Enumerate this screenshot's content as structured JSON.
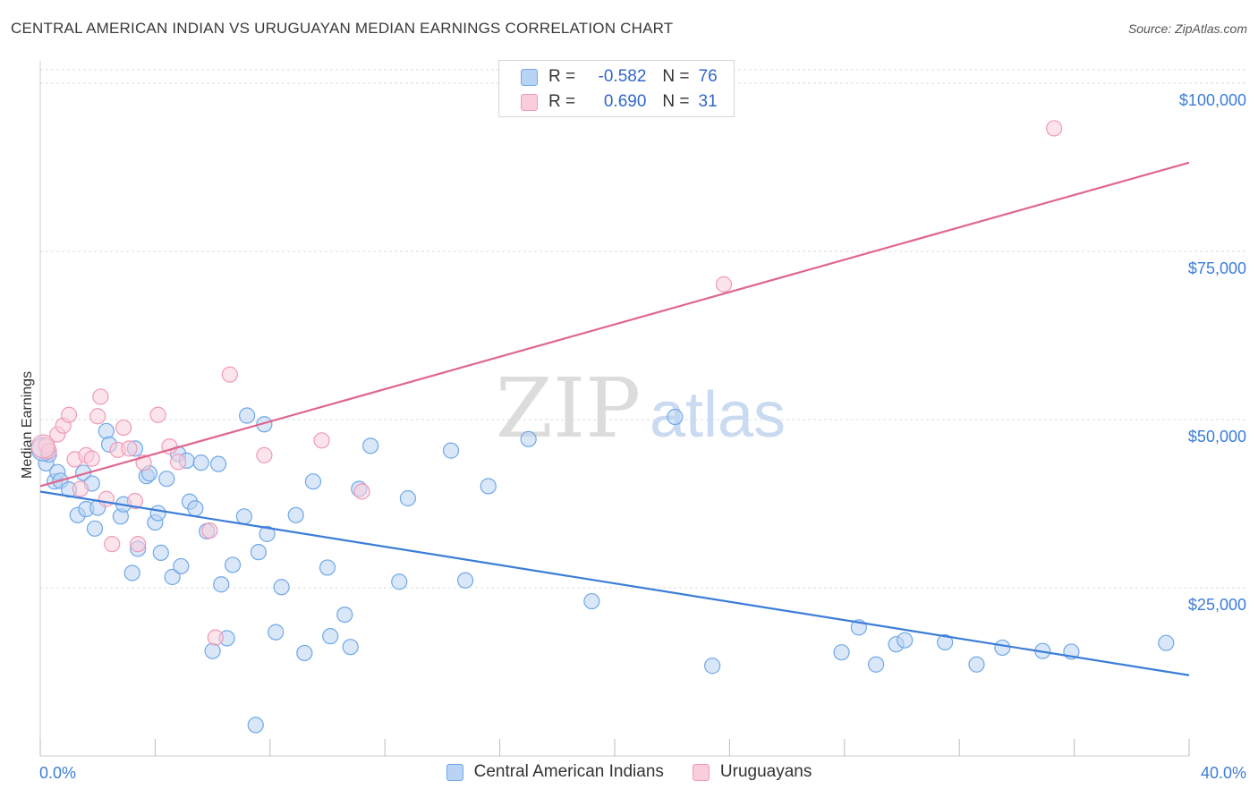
{
  "title": "CENTRAL AMERICAN INDIAN VS URUGUAYAN MEDIAN EARNINGS CORRELATION CHART",
  "source": "Source: ZipAtlas.com",
  "watermark": {
    "zip": "ZIP",
    "atlas": "atlas"
  },
  "stats": [
    {
      "r_label": "R =",
      "r_value": "-0.582",
      "n_label": "N =",
      "n_value": "76",
      "color": "#6fa8e8",
      "fill": "#b9d3f4"
    },
    {
      "r_label": "R =",
      "r_value": "0.690",
      "n_label": "N =",
      "n_value": "31",
      "color": "#f09ab8",
      "fill": "#f9cddb"
    }
  ],
  "legend": [
    {
      "label": "Central American Indians",
      "color": "#6fa8e8",
      "fill": "#b9d3f4"
    },
    {
      "label": "Uruguayans",
      "color": "#f09ab8",
      "fill": "#f9cddb"
    }
  ],
  "chart_data": {
    "type": "scatter",
    "xlabel": "",
    "ylabel": "Median Earnings",
    "xlim": [
      0,
      40
    ],
    "ylim": [
      0,
      102000
    ],
    "x_tick_labels": [
      "0.0%",
      "40.0%"
    ],
    "y_ticks": [
      {
        "value": 25000,
        "label": "$25,000"
      },
      {
        "value": 50000,
        "label": "$50,000"
      },
      {
        "value": 75000,
        "label": "$75,000"
      },
      {
        "value": 100000,
        "label": "$100,000"
      }
    ],
    "grid": true,
    "legend_position": "bottom",
    "series": [
      {
        "name": "Central American Indians",
        "color": "#3b7dd8",
        "fill": "#b9d3f4",
        "stroke": "#6fa8e8",
        "trend": {
          "x0": 0,
          "y0": 39300,
          "x1": 40,
          "y1": 12000
        },
        "points": [
          [
            0.2,
            43500
          ],
          [
            0.3,
            44800
          ],
          [
            0.5,
            40800
          ],
          [
            0.6,
            42200
          ],
          [
            0.7,
            40900
          ],
          [
            1.0,
            39600
          ],
          [
            1.3,
            35800
          ],
          [
            1.5,
            42100
          ],
          [
            1.6,
            36700
          ],
          [
            1.8,
            40500
          ],
          [
            1.9,
            33800
          ],
          [
            2.0,
            36900
          ],
          [
            2.3,
            48300
          ],
          [
            2.4,
            46300
          ],
          [
            2.8,
            35600
          ],
          [
            2.9,
            37400
          ],
          [
            3.2,
            27200
          ],
          [
            3.3,
            45700
          ],
          [
            3.4,
            30800
          ],
          [
            3.7,
            41600
          ],
          [
            3.8,
            42000
          ],
          [
            4.0,
            34700
          ],
          [
            4.1,
            36100
          ],
          [
            4.2,
            30200
          ],
          [
            4.4,
            41200
          ],
          [
            4.6,
            26600
          ],
          [
            4.8,
            44900
          ],
          [
            4.9,
            28200
          ],
          [
            5.1,
            43900
          ],
          [
            5.2,
            37800
          ],
          [
            5.4,
            36800
          ],
          [
            5.6,
            43600
          ],
          [
            5.8,
            33400
          ],
          [
            6.0,
            15600
          ],
          [
            6.2,
            43400
          ],
          [
            6.3,
            25500
          ],
          [
            6.5,
            17500
          ],
          [
            6.7,
            28400
          ],
          [
            7.1,
            35600
          ],
          [
            7.2,
            50600
          ],
          [
            7.5,
            4600
          ],
          [
            7.6,
            30300
          ],
          [
            7.8,
            49300
          ],
          [
            7.9,
            33000
          ],
          [
            8.2,
            18400
          ],
          [
            8.4,
            25100
          ],
          [
            8.9,
            35800
          ],
          [
            9.2,
            15300
          ],
          [
            9.5,
            40800
          ],
          [
            10.0,
            28000
          ],
          [
            10.1,
            17800
          ],
          [
            10.6,
            21000
          ],
          [
            10.8,
            16200
          ],
          [
            11.1,
            39700
          ],
          [
            11.5,
            46100
          ],
          [
            12.5,
            25900
          ],
          [
            12.8,
            38300
          ],
          [
            14.3,
            45400
          ],
          [
            14.8,
            26100
          ],
          [
            15.6,
            40100
          ],
          [
            17.0,
            47100
          ],
          [
            19.2,
            23000
          ],
          [
            22.1,
            50400
          ],
          [
            23.4,
            13400
          ],
          [
            27.9,
            15400
          ],
          [
            28.5,
            19100
          ],
          [
            29.1,
            13600
          ],
          [
            29.8,
            16600
          ],
          [
            30.1,
            17200
          ],
          [
            31.5,
            16900
          ],
          [
            32.6,
            13600
          ],
          [
            33.5,
            16100
          ],
          [
            34.9,
            15600
          ],
          [
            35.9,
            15500
          ],
          [
            39.2,
            16800
          ],
          [
            0.1,
            45600
          ]
        ]
      },
      {
        "name": "Uruguayans",
        "color": "#e0668d",
        "fill": "#f9cddb",
        "stroke": "#f09ab8",
        "trend": {
          "x0": 0,
          "y0": 40100,
          "x1": 40,
          "y1": 88200
        },
        "points": [
          [
            0.2,
            46100
          ],
          [
            0.3,
            45300
          ],
          [
            0.6,
            47800
          ],
          [
            0.8,
            49100
          ],
          [
            1.0,
            50700
          ],
          [
            1.2,
            44100
          ],
          [
            1.4,
            39700
          ],
          [
            1.6,
            44700
          ],
          [
            1.8,
            44200
          ],
          [
            2.0,
            50500
          ],
          [
            2.1,
            53400
          ],
          [
            2.3,
            38200
          ],
          [
            2.5,
            31500
          ],
          [
            2.7,
            45500
          ],
          [
            2.9,
            48800
          ],
          [
            3.1,
            45700
          ],
          [
            3.3,
            37900
          ],
          [
            3.4,
            31500
          ],
          [
            3.6,
            43600
          ],
          [
            4.1,
            50700
          ],
          [
            4.5,
            46000
          ],
          [
            4.8,
            43700
          ],
          [
            5.9,
            33500
          ],
          [
            6.1,
            17600
          ],
          [
            6.6,
            56700
          ],
          [
            7.8,
            44700
          ],
          [
            9.8,
            46900
          ],
          [
            11.2,
            39300
          ],
          [
            23.8,
            70100
          ],
          [
            35.3,
            93300
          ],
          [
            0.1,
            46000
          ]
        ]
      }
    ]
  }
}
